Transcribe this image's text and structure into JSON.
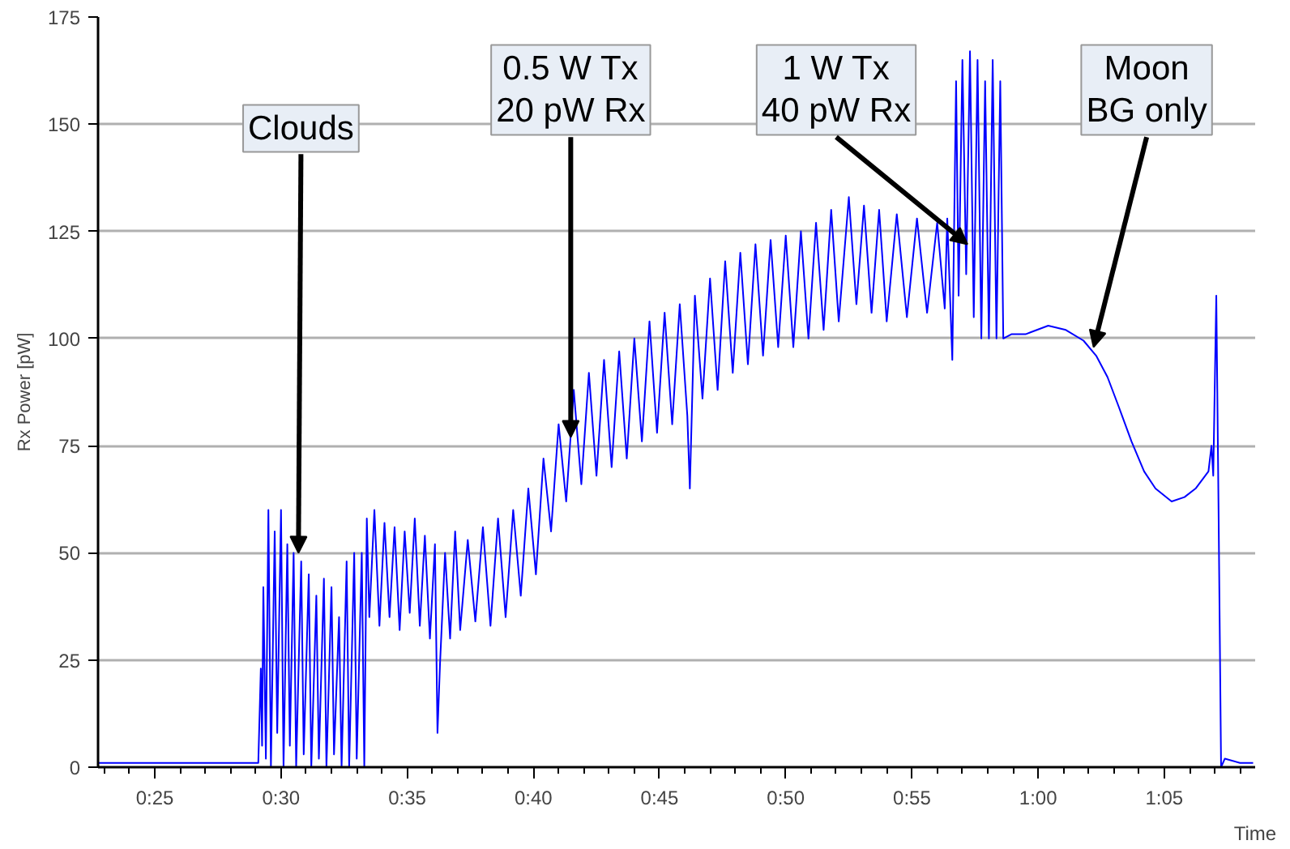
{
  "chart_data": {
    "type": "line",
    "ylabel": "Rx Power [pW]",
    "xlabel": "Time",
    "xlim": [
      22.75,
      68.6
    ],
    "ylim": [
      0,
      175
    ],
    "xticks": [
      {
        "value": 25,
        "label": "0:25"
      },
      {
        "value": 30,
        "label": "0:30"
      },
      {
        "value": 35,
        "label": "0:35"
      },
      {
        "value": 40,
        "label": "0:40"
      },
      {
        "value": 45,
        "label": "0:45"
      },
      {
        "value": 50,
        "label": "0:50"
      },
      {
        "value": 55,
        "label": "0:55"
      },
      {
        "value": 60,
        "label": "1:00"
      },
      {
        "value": 65,
        "label": "1:05"
      }
    ],
    "yticks": [
      0,
      25,
      50,
      75,
      100,
      125,
      150,
      175
    ],
    "grid": "y",
    "marker": "none",
    "line_style": "solid",
    "annotations": [
      {
        "text": "Clouds",
        "x": 30.69,
        "y": 50
      },
      {
        "text": "0.5 W Tx\n20 pW Rx",
        "x": 41.48,
        "y": 77
      },
      {
        "text": "1 W Tx\n40 pW Rx",
        "x": 57.2,
        "y": 122
      },
      {
        "text": "Moon\nBG only",
        "x": 62.2,
        "y": 98
      }
    ],
    "series": [
      {
        "color": "#0000ff",
        "x": [
          22.75,
          24,
          26,
          28,
          29.1,
          29.2,
          29.25,
          29.3,
          29.4,
          29.5,
          29.6,
          29.75,
          29.85,
          30.0,
          30.1,
          30.25,
          30.35,
          30.5,
          30.6,
          30.8,
          30.9,
          31.1,
          31.2,
          31.4,
          31.5,
          31.7,
          31.8,
          32.0,
          32.1,
          32.3,
          32.4,
          32.6,
          32.7,
          32.9,
          33.0,
          33.2,
          33.3,
          33.4,
          33.5,
          33.7,
          33.9,
          34.1,
          34.3,
          34.5,
          34.7,
          34.9,
          35.1,
          35.3,
          35.5,
          35.7,
          35.9,
          36.1,
          36.2,
          36.3,
          36.5,
          36.7,
          36.9,
          37.1,
          37.4,
          37.7,
          38.0,
          38.3,
          38.6,
          38.9,
          39.2,
          39.5,
          39.8,
          40.1,
          40.4,
          40.7,
          41.0,
          41.3,
          41.6,
          41.9,
          42.2,
          42.5,
          42.8,
          43.1,
          43.4,
          43.7,
          44.0,
          44.3,
          44.6,
          44.9,
          45.2,
          45.5,
          45.8,
          46.1,
          46.2,
          46.4,
          46.7,
          47.0,
          47.3,
          47.6,
          47.9,
          48.2,
          48.5,
          48.8,
          49.1,
          49.4,
          49.7,
          50.0,
          50.3,
          50.6,
          50.9,
          51.2,
          51.5,
          51.8,
          52.1,
          52.5,
          52.8,
          53.1,
          53.4,
          53.7,
          54.0,
          54.4,
          54.8,
          55.2,
          55.6,
          56.0,
          56.3,
          56.4,
          56.6,
          56.75,
          56.85,
          57.0,
          57.15,
          57.3,
          57.45,
          57.6,
          57.75,
          57.9,
          58.05,
          58.2,
          58.35,
          58.5,
          58.62,
          58.94,
          59.5,
          60.4,
          61.1,
          61.8,
          62.3,
          62.75,
          63.2,
          63.7,
          64.2,
          64.65,
          65.29,
          65.8,
          66.24,
          66.75,
          66.87,
          66.94,
          67.06,
          67.15,
          67.25,
          67.4,
          68.0,
          68.52
        ],
        "values": [
          1,
          1,
          1,
          1,
          1,
          23,
          5,
          42,
          2,
          60,
          0,
          55,
          8,
          60,
          0,
          52,
          5,
          50,
          0,
          48,
          3,
          45,
          0,
          40,
          2,
          44,
          0,
          42,
          3,
          35,
          0,
          48,
          0,
          50,
          2,
          50,
          0,
          58,
          35,
          60,
          33,
          57,
          35,
          56,
          32,
          55,
          36,
          58,
          33,
          54,
          30,
          52,
          8,
          24,
          50,
          30,
          55,
          32,
          53,
          34,
          56,
          33,
          58,
          35,
          60,
          40,
          65,
          45,
          72,
          55,
          80,
          62,
          88,
          66,
          92,
          68,
          95,
          70,
          97,
          72,
          100,
          76,
          104,
          78,
          106,
          80,
          108,
          82,
          65,
          110,
          86,
          114,
          88,
          118,
          92,
          120,
          94,
          122,
          96,
          123,
          98,
          124,
          98,
          125,
          100,
          127,
          102,
          130,
          104,
          133,
          108,
          131,
          106,
          130,
          104,
          129,
          105,
          128,
          106,
          127,
          107,
          128,
          95,
          160,
          110,
          165,
          115,
          167,
          105,
          165,
          100,
          160,
          100,
          165,
          100,
          160,
          100,
          101,
          101,
          103,
          102,
          99.5,
          96,
          91,
          84,
          76,
          69,
          65,
          62,
          63,
          65,
          69,
          75,
          68,
          110,
          60,
          0,
          2,
          1,
          1
        ]
      }
    ]
  }
}
